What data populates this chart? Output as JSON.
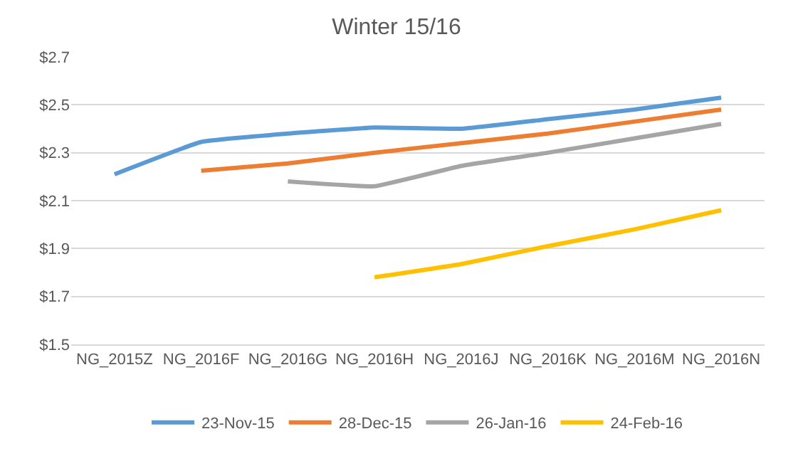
{
  "chart_data": {
    "type": "line",
    "title": "Winter 15/16",
    "categories": [
      "NG_2015Z",
      "NG_2016F",
      "NG_2016G",
      "NG_2016H",
      "NG_2016J",
      "NG_2016K",
      "NG_2016M",
      "NG_2016N"
    ],
    "series": [
      {
        "name": "23-Nov-15",
        "color": "#5b9bd5",
        "values": [
          2.21,
          2.345,
          2.38,
          2.405,
          2.4,
          2.44,
          2.48,
          2.53
        ]
      },
      {
        "name": "28-Dec-15",
        "color": "#ed7d31",
        "values": [
          null,
          2.225,
          2.255,
          2.3,
          2.34,
          2.38,
          2.43,
          2.48
        ]
      },
      {
        "name": "26-Jan-16",
        "color": "#a5a5a5",
        "values": [
          null,
          null,
          2.18,
          2.16,
          2.245,
          2.3,
          2.36,
          2.42
        ]
      },
      {
        "name": "24-Feb-16",
        "color": "#ffc000",
        "values": [
          null,
          null,
          null,
          1.78,
          1.835,
          1.91,
          1.98,
          2.06
        ]
      }
    ],
    "ylim": [
      1.5,
      2.7
    ],
    "yticks": [
      {
        "value": 1.5,
        "label": "$1.5"
      },
      {
        "value": 1.7,
        "label": "$1.7"
      },
      {
        "value": 1.9,
        "label": "$1.9"
      },
      {
        "value": 2.1,
        "label": "$2.1"
      },
      {
        "value": 2.3,
        "label": "$2.3"
      },
      {
        "value": 2.5,
        "label": "$2.5"
      },
      {
        "value": 2.7,
        "label": "$2.7"
      }
    ],
    "grid": "y",
    "legend": "bottom",
    "marker": "none",
    "line_style": "solid"
  }
}
